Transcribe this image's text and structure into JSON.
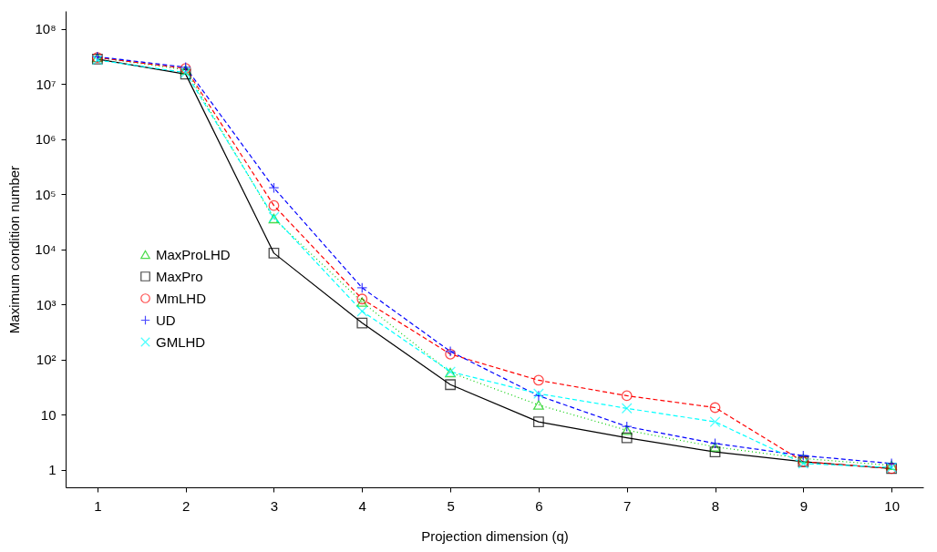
{
  "chart_data": {
    "type": "line",
    "xlabel": "Projection dimension (q)",
    "ylabel": "Maximum condition number",
    "x": [
      1,
      2,
      3,
      4,
      5,
      6,
      7,
      8,
      9,
      10
    ],
    "series": [
      {
        "name": "MaxProLHD",
        "color": "#00cd00",
        "marker": "triangle",
        "line_style": "dotted",
        "values": [
          30000000,
          18000000,
          36000,
          1100,
          58,
          15,
          5.2,
          2.6,
          1.6,
          1.2
        ]
      },
      {
        "name": "MaxPro",
        "color": "#000000",
        "marker": "square",
        "line_style": "solid",
        "values": [
          28000000,
          15000000,
          8500,
          460,
          35,
          7.4,
          3.8,
          2.1,
          1.4,
          1.05
        ]
      },
      {
        "name": "MmLHD",
        "color": "#ff0000",
        "marker": "circle",
        "line_style": "dashed",
        "values": [
          30000000,
          19000000,
          62000,
          1250,
          125,
          42,
          22,
          13.4,
          1.4,
          1.05
        ]
      },
      {
        "name": "UD",
        "color": "#0000ff",
        "marker": "cross",
        "line_style": "dashed",
        "values": [
          31000000,
          20000000,
          130000,
          2000,
          140,
          22,
          6.1,
          3.0,
          1.8,
          1.3
        ]
      },
      {
        "name": "GMLHD",
        "color": "#00ffff",
        "marker": "x",
        "line_style": "dashed",
        "values": [
          27000000,
          16000000,
          38000,
          750,
          60,
          24,
          13,
          7.4,
          1.3,
          1.1
        ]
      }
    ],
    "log": "y",
    "grid": false,
    "legend": "left",
    "xlim": [
      0.64,
      10.36
    ],
    "xticks": [
      1,
      2,
      3,
      4,
      5,
      6,
      7,
      8,
      9,
      10
    ],
    "ylim": [
      0.48,
      210000000
    ],
    "yticks": [
      1,
      10,
      {
        "value": 100,
        "label": "10²"
      },
      {
        "value": 1000,
        "label": "10³"
      },
      {
        "value": 10000,
        "label": "10⁴"
      },
      {
        "value": 100000,
        "label": "10⁵"
      },
      {
        "value": 1000000,
        "label": "10⁶"
      },
      {
        "value": 10000000,
        "label": "10⁷"
      },
      {
        "value": 100000000,
        "label": "10⁸"
      }
    ]
  }
}
